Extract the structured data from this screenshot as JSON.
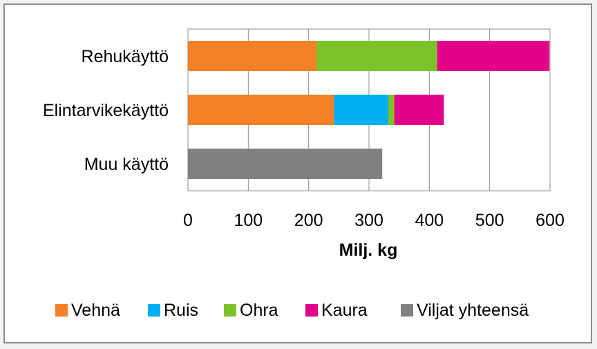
{
  "chart_data": {
    "type": "bar",
    "orientation": "horizontal",
    "stacked": true,
    "title": "",
    "xlabel": "Milj. kg",
    "ylabel": "",
    "xlim": [
      0,
      600
    ],
    "ticks": [
      0,
      100,
      200,
      300,
      400,
      500,
      600
    ],
    "grid": true,
    "legend_position": "bottom",
    "categories": [
      "Rehukäyttö",
      "Elintarvikekäyttö",
      "Muu käyttö"
    ],
    "series": [
      {
        "name": "Vehnä",
        "color": "#f58025",
        "values": [
          213,
          242,
          0
        ]
      },
      {
        "name": "Ruis",
        "color": "#00b0f0",
        "values": [
          0,
          90,
          0
        ]
      },
      {
        "name": "Ohra",
        "color": "#7dc22a",
        "values": [
          200,
          10,
          0
        ]
      },
      {
        "name": "Kaura",
        "color": "#e4018a",
        "values": [
          186,
          82,
          0
        ]
      },
      {
        "name": "Viljat yhteensä",
        "color": "#808080",
        "values": [
          0,
          0,
          322
        ]
      }
    ]
  }
}
